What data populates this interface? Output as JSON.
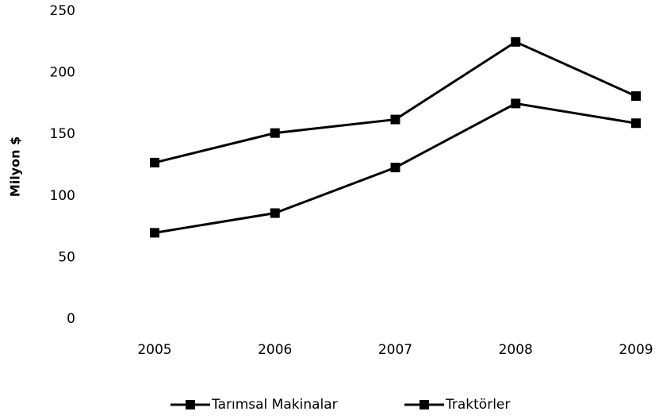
{
  "chart_data": {
    "type": "line",
    "y_label": "Milyon $",
    "categories": [
      "2005",
      "2006",
      "2007",
      "2008",
      "2009"
    ],
    "series": [
      {
        "name": "Tarımsal Makinalar",
        "color": "#000000",
        "values": [
          127,
          151,
          162,
          225,
          181
        ]
      },
      {
        "name": "Traktörler",
        "color": "#000000",
        "values": [
          70,
          86,
          123,
          175,
          159
        ]
      }
    ],
    "ylim": [
      0,
      250
    ],
    "yticks": [
      0,
      50,
      100,
      150,
      200,
      250
    ],
    "grid": false,
    "legend": "bottom"
  }
}
